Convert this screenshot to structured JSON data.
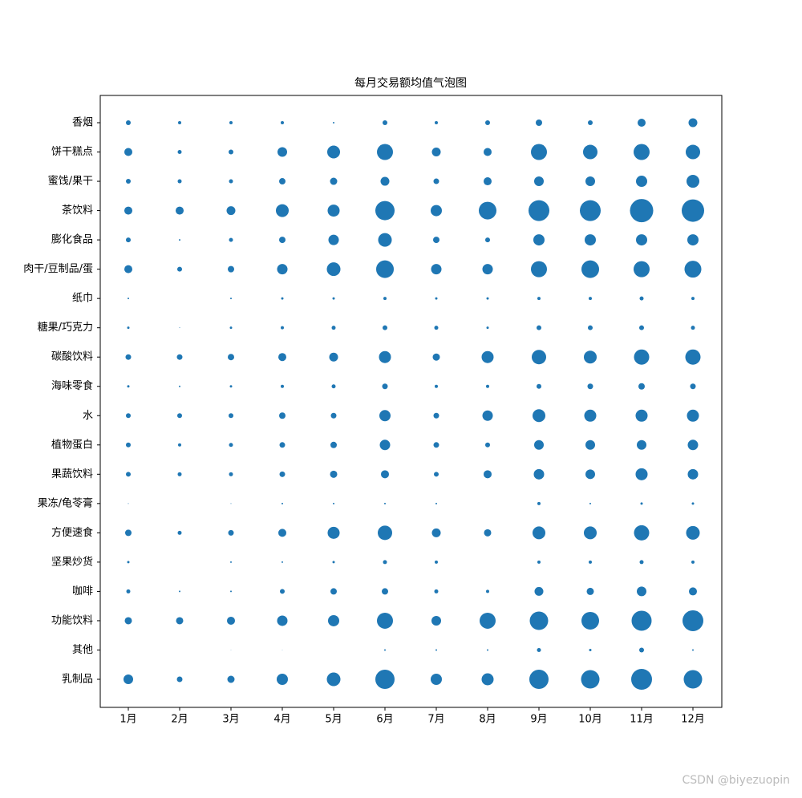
{
  "chart_data": {
    "type": "bubble",
    "title": "每月交易额均值气泡图",
    "color": "#1f77b4",
    "categories": [
      "1月",
      "2月",
      "3月",
      "4月",
      "5月",
      "6月",
      "7月",
      "8月",
      "9月",
      "10月",
      "11月",
      "12月"
    ],
    "series": [
      {
        "name": "香烟",
        "values": [
          3,
          2,
          2,
          2,
          1,
          3,
          2,
          3,
          4,
          3,
          5,
          5.5
        ]
      },
      {
        "name": "饼干糕点",
        "values": [
          5,
          2.5,
          3,
          6,
          8,
          10,
          5.5,
          5,
          10,
          9,
          10,
          9
        ]
      },
      {
        "name": "蜜饯/果干",
        "values": [
          3,
          2.5,
          2.5,
          4,
          4.5,
          5.5,
          3.5,
          5,
          6,
          6,
          7,
          8
        ]
      },
      {
        "name": "茶饮料",
        "values": [
          5,
          5,
          5.5,
          8,
          7.5,
          12,
          7,
          11,
          13,
          13,
          14.5,
          14
        ]
      },
      {
        "name": "膨化食品",
        "values": [
          3,
          1,
          2.5,
          4,
          6.5,
          8.5,
          4,
          3,
          7,
          7,
          7,
          7
        ]
      },
      {
        "name": "肉干/豆制品/蛋",
        "values": [
          5,
          3,
          4,
          6.5,
          8.5,
          11,
          6.5,
          6.5,
          10,
          11,
          10,
          10.5
        ]
      },
      {
        "name": "纸巾",
        "values": [
          1,
          0,
          1,
          1.5,
          1.5,
          2,
          1.5,
          1.5,
          2,
          2,
          2.5,
          2
        ]
      },
      {
        "name": "糖果/巧克力",
        "values": [
          1.5,
          0.5,
          1.5,
          2,
          2.5,
          3,
          2.5,
          1.5,
          3,
          3,
          3,
          2.5
        ]
      },
      {
        "name": "碳酸饮料",
        "values": [
          3.5,
          3.5,
          4,
          5,
          5.5,
          7.5,
          4.5,
          7.5,
          9,
          8,
          9.5,
          9.5
        ]
      },
      {
        "name": "海味零食",
        "values": [
          1.5,
          1,
          1.5,
          2,
          2.5,
          3.5,
          2,
          2,
          3,
          3.5,
          4,
          3.5
        ]
      },
      {
        "name": "水",
        "values": [
          3,
          3,
          3,
          4,
          3.5,
          7,
          3.5,
          6.5,
          8,
          7.5,
          7.5,
          7.5
        ]
      },
      {
        "name": "植物蛋白",
        "values": [
          3,
          2,
          2.5,
          3.5,
          4,
          6.5,
          3.5,
          3,
          6,
          6,
          6,
          6.5
        ]
      },
      {
        "name": "果蔬饮料",
        "values": [
          3,
          2.5,
          2.5,
          3.5,
          4.5,
          5,
          3,
          5,
          6.5,
          6,
          7.5,
          6.5
        ]
      },
      {
        "name": "果冻/龟苓膏",
        "values": [
          0.5,
          0,
          0.5,
          1,
          1,
          1,
          1,
          0,
          2,
          1,
          1.5,
          1.5
        ]
      },
      {
        "name": "方便速食",
        "values": [
          4,
          2.5,
          3.5,
          5,
          7.5,
          9,
          5.5,
          4.5,
          8,
          8,
          9.5,
          8.5
        ]
      },
      {
        "name": "坚果炒货",
        "values": [
          1.5,
          0,
          1,
          1,
          1.5,
          2.5,
          2,
          0,
          2,
          2,
          2.5,
          2
        ]
      },
      {
        "name": "咖啡",
        "values": [
          2.5,
          1,
          1,
          3,
          4,
          4,
          2.5,
          2,
          5.5,
          4.5,
          6,
          5
        ]
      },
      {
        "name": "功能饮料",
        "values": [
          4.5,
          4.5,
          5,
          6.5,
          7,
          10,
          6,
          10,
          11.5,
          11,
          12.5,
          13
        ]
      },
      {
        "name": "其他",
        "values": [
          0,
          0,
          0.3,
          0.3,
          0,
          1,
          1,
          1,
          2.5,
          1.5,
          3,
          1
        ]
      },
      {
        "name": "乳制品",
        "values": [
          6,
          3.5,
          4.5,
          7,
          8.5,
          12,
          7,
          7.5,
          12,
          11.5,
          13,
          11.5
        ]
      }
    ]
  },
  "watermark": "CSDN @biyezuopin"
}
